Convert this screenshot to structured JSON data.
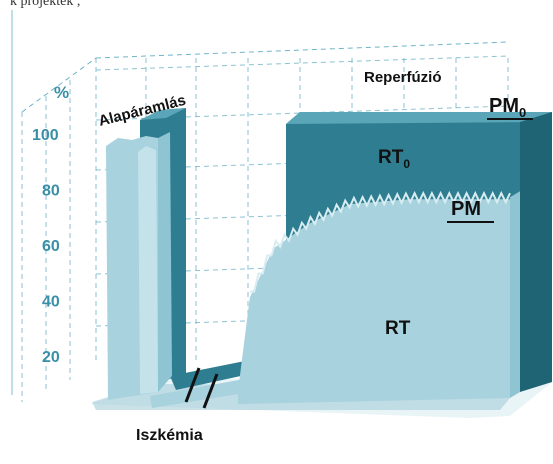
{
  "top_fragment": "k  projektek    ,",
  "chart_data": {
    "type": "area",
    "title": "",
    "ylabel": "%",
    "ylim": [
      0,
      100
    ],
    "y_ticks": [
      20,
      40,
      60,
      80,
      100
    ],
    "grid": true,
    "phases": {
      "baseline": "Alapáramlás",
      "ischemia": "Iszkémia",
      "reperfusion": "Reperfúzió"
    },
    "series": [
      {
        "name": "PM₀",
        "label_base": "PM",
        "label_sub": "0",
        "color": "#3f8ea2",
        "segments": [
          {
            "phase": "baseline",
            "value": 100
          },
          {
            "phase": "ischemia",
            "value": 0
          },
          {
            "phase": "reperfusion",
            "value": 100
          }
        ]
      },
      {
        "name": "RT₀",
        "label_base": "RT",
        "label_sub": "0",
        "color": "#2a7283",
        "segments": [
          {
            "phase": "baseline",
            "value": 100
          },
          {
            "phase": "ischemia",
            "value": 0
          },
          {
            "phase": "reperfusion",
            "value": 100
          }
        ]
      },
      {
        "name": "PM",
        "label_base": "PM",
        "color": "#8ec4d3",
        "points": [
          [
            0,
            98
          ],
          [
            8,
            98
          ],
          [
            9,
            2
          ],
          [
            16,
            2
          ],
          [
            18,
            45
          ],
          [
            22,
            62
          ],
          [
            28,
            72
          ],
          [
            35,
            80
          ],
          [
            45,
            80
          ],
          [
            55,
            80
          ],
          [
            62,
            80
          ]
        ]
      },
      {
        "name": "RT",
        "label_base": "RT",
        "color": "#a4d0dd",
        "points": [
          [
            0,
            100
          ],
          [
            6,
            100
          ],
          [
            7,
            2
          ],
          [
            16,
            2
          ],
          [
            18,
            40
          ],
          [
            22,
            60
          ],
          [
            28,
            70
          ],
          [
            35,
            78
          ],
          [
            45,
            80
          ],
          [
            55,
            80
          ],
          [
            62,
            80
          ]
        ]
      }
    ]
  },
  "colors": {
    "axis_text": "#3a8fa8",
    "grid": "#6fb4c8",
    "floor": "#9fc9d6",
    "dark_back": "#2f7d90",
    "dark_top": "#5aa6b8",
    "light_front": "#a7d2de",
    "light_mid": "#8fc4d2",
    "text": "#111111"
  }
}
